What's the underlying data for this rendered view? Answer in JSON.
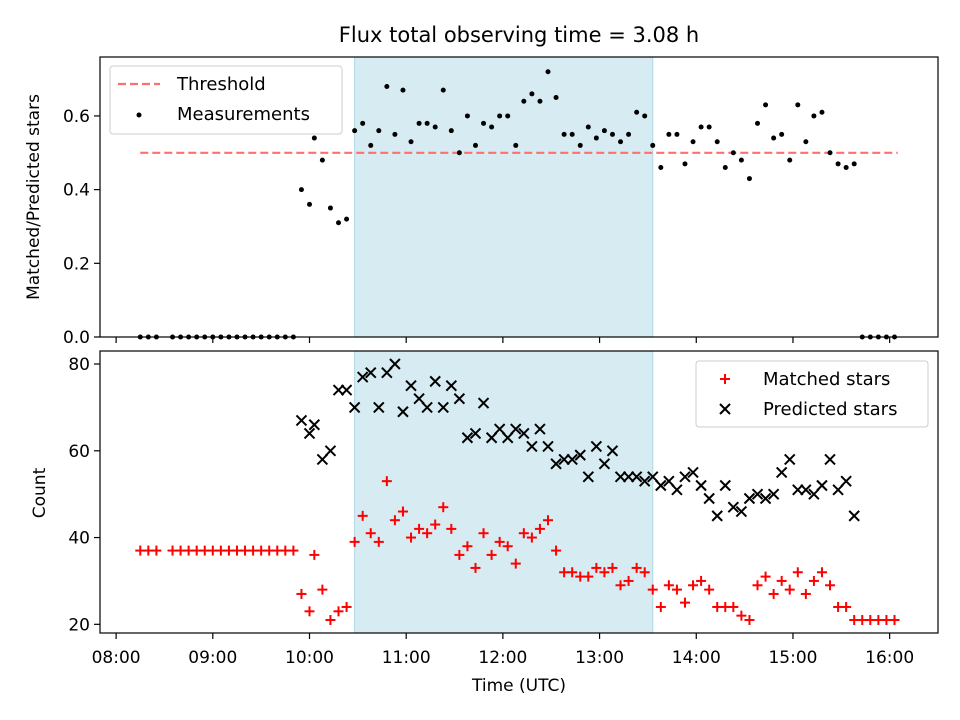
{
  "title": "Flux total observing time = 3.08 h",
  "colors": {
    "threshold": "#ff6f6f",
    "measurement": "#000000",
    "matched": "#ff0000",
    "predicted": "#000000",
    "shade": "#add8e6"
  },
  "chart_data": [
    {
      "type": "scatter",
      "ylabel": "Matched/Predicted stars",
      "xlim": [
        "07:50",
        "16:30"
      ],
      "ylim": [
        0,
        0.76
      ],
      "yticks": [
        "0.0",
        "0.2",
        "0.4",
        "0.6"
      ],
      "shaded_interval": [
        "10:28",
        "13:33"
      ],
      "legend_position": "top-left",
      "threshold": {
        "name": "Threshold",
        "value": 0.5,
        "x_range": [
          "08:15",
          "16:05"
        ]
      },
      "measurements": {
        "name": "Measurements",
        "points": [
          [
            "08:15",
            0
          ],
          [
            "08:20",
            0
          ],
          [
            "08:25",
            0
          ],
          [
            "08:35",
            0
          ],
          [
            "08:40",
            0
          ],
          [
            "08:45",
            0
          ],
          [
            "08:50",
            0
          ],
          [
            "08:55",
            0
          ],
          [
            "09:00",
            0
          ],
          [
            "09:05",
            0
          ],
          [
            "09:10",
            0
          ],
          [
            "09:15",
            0
          ],
          [
            "09:20",
            0
          ],
          [
            "09:25",
            0
          ],
          [
            "09:30",
            0
          ],
          [
            "09:35",
            0
          ],
          [
            "09:40",
            0
          ],
          [
            "09:45",
            0
          ],
          [
            "09:50",
            0
          ],
          [
            "09:55",
            0.4
          ],
          [
            "10:00",
            0.36
          ],
          [
            "10:03",
            0.54
          ],
          [
            "10:08",
            0.48
          ],
          [
            "10:13",
            0.35
          ],
          [
            "10:18",
            0.31
          ],
          [
            "10:23",
            0.32
          ],
          [
            "10:28",
            0.56
          ],
          [
            "10:33",
            0.58
          ],
          [
            "10:38",
            0.52
          ],
          [
            "10:43",
            0.56
          ],
          [
            "10:48",
            0.68
          ],
          [
            "10:53",
            0.55
          ],
          [
            "10:58",
            0.67
          ],
          [
            "11:03",
            0.53
          ],
          [
            "11:08",
            0.58
          ],
          [
            "11:13",
            0.58
          ],
          [
            "11:18",
            0.57
          ],
          [
            "11:23",
            0.67
          ],
          [
            "11:28",
            0.56
          ],
          [
            "11:33",
            0.5
          ],
          [
            "11:38",
            0.6
          ],
          [
            "11:43",
            0.52
          ],
          [
            "11:48",
            0.58
          ],
          [
            "11:53",
            0.57
          ],
          [
            "11:58",
            0.6
          ],
          [
            "12:03",
            0.6
          ],
          [
            "12:08",
            0.52
          ],
          [
            "12:13",
            0.64
          ],
          [
            "12:18",
            0.66
          ],
          [
            "12:23",
            0.64
          ],
          [
            "12:28",
            0.72
          ],
          [
            "12:33",
            0.65
          ],
          [
            "12:38",
            0.55
          ],
          [
            "12:43",
            0.55
          ],
          [
            "12:48",
            0.52
          ],
          [
            "12:53",
            0.57
          ],
          [
            "12:58",
            0.54
          ],
          [
            "13:03",
            0.56
          ],
          [
            "13:08",
            0.55
          ],
          [
            "13:13",
            0.53
          ],
          [
            "13:18",
            0.55
          ],
          [
            "13:23",
            0.61
          ],
          [
            "13:28",
            0.6
          ],
          [
            "13:33",
            0.52
          ],
          [
            "13:38",
            0.46
          ],
          [
            "13:43",
            0.55
          ],
          [
            "13:48",
            0.55
          ],
          [
            "13:53",
            0.47
          ],
          [
            "13:58",
            0.53
          ],
          [
            "14:03",
            0.57
          ],
          [
            "14:08",
            0.57
          ],
          [
            "14:13",
            0.53
          ],
          [
            "14:18",
            0.46
          ],
          [
            "14:23",
            0.5
          ],
          [
            "14:28",
            0.48
          ],
          [
            "14:33",
            0.43
          ],
          [
            "14:38",
            0.58
          ],
          [
            "14:43",
            0.63
          ],
          [
            "14:48",
            0.54
          ],
          [
            "14:53",
            0.55
          ],
          [
            "14:58",
            0.48
          ],
          [
            "15:03",
            0.63
          ],
          [
            "15:08",
            0.53
          ],
          [
            "15:13",
            0.6
          ],
          [
            "15:18",
            0.61
          ],
          [
            "15:23",
            0.5
          ],
          [
            "15:28",
            0.47
          ],
          [
            "15:33",
            0.46
          ],
          [
            "15:38",
            0.47
          ],
          [
            "15:43",
            0
          ],
          [
            "15:48",
            0
          ],
          [
            "15:53",
            0
          ],
          [
            "15:58",
            0
          ],
          [
            "16:03",
            0
          ]
        ]
      }
    },
    {
      "type": "scatter",
      "xlabel": "Time (UTC)",
      "ylabel": "Count",
      "xlim": [
        "07:50",
        "16:30"
      ],
      "ylim": [
        18,
        83
      ],
      "yticks": [
        "20",
        "40",
        "60",
        "80"
      ],
      "xticks": [
        "08:00",
        "09:00",
        "10:00",
        "11:00",
        "12:00",
        "13:00",
        "14:00",
        "15:00",
        "16:00"
      ],
      "shaded_interval": [
        "10:28",
        "13:33"
      ],
      "legend_position": "top-right",
      "series": [
        {
          "name": "Matched stars",
          "marker": "plus",
          "points": [
            [
              "08:15",
              37
            ],
            [
              "08:20",
              37
            ],
            [
              "08:25",
              37
            ],
            [
              "08:35",
              37
            ],
            [
              "08:40",
              37
            ],
            [
              "08:45",
              37
            ],
            [
              "08:50",
              37
            ],
            [
              "08:55",
              37
            ],
            [
              "09:00",
              37
            ],
            [
              "09:05",
              37
            ],
            [
              "09:10",
              37
            ],
            [
              "09:15",
              37
            ],
            [
              "09:20",
              37
            ],
            [
              "09:25",
              37
            ],
            [
              "09:30",
              37
            ],
            [
              "09:35",
              37
            ],
            [
              "09:40",
              37
            ],
            [
              "09:45",
              37
            ],
            [
              "09:50",
              37
            ],
            [
              "09:55",
              27
            ],
            [
              "10:00",
              23
            ],
            [
              "10:03",
              36
            ],
            [
              "10:08",
              28
            ],
            [
              "10:13",
              21
            ],
            [
              "10:18",
              23
            ],
            [
              "10:23",
              24
            ],
            [
              "10:28",
              39
            ],
            [
              "10:33",
              45
            ],
            [
              "10:38",
              41
            ],
            [
              "10:43",
              39
            ],
            [
              "10:48",
              53
            ],
            [
              "10:53",
              44
            ],
            [
              "10:58",
              46
            ],
            [
              "11:03",
              40
            ],
            [
              "11:08",
              42
            ],
            [
              "11:13",
              41
            ],
            [
              "11:18",
              43
            ],
            [
              "11:23",
              47
            ],
            [
              "11:28",
              42
            ],
            [
              "11:33",
              36
            ],
            [
              "11:38",
              38
            ],
            [
              "11:43",
              33
            ],
            [
              "11:48",
              41
            ],
            [
              "11:53",
              36
            ],
            [
              "11:58",
              39
            ],
            [
              "12:03",
              38
            ],
            [
              "12:08",
              34
            ],
            [
              "12:13",
              41
            ],
            [
              "12:18",
              40
            ],
            [
              "12:23",
              42
            ],
            [
              "12:28",
              44
            ],
            [
              "12:33",
              37
            ],
            [
              "12:38",
              32
            ],
            [
              "12:43",
              32
            ],
            [
              "12:48",
              31
            ],
            [
              "12:53",
              31
            ],
            [
              "12:58",
              33
            ],
            [
              "13:03",
              32
            ],
            [
              "13:08",
              33
            ],
            [
              "13:13",
              29
            ],
            [
              "13:18",
              30
            ],
            [
              "13:23",
              33
            ],
            [
              "13:28",
              32
            ],
            [
              "13:33",
              28
            ],
            [
              "13:38",
              24
            ],
            [
              "13:43",
              29
            ],
            [
              "13:48",
              28
            ],
            [
              "13:53",
              25
            ],
            [
              "13:58",
              29
            ],
            [
              "14:03",
              30
            ],
            [
              "14:08",
              28
            ],
            [
              "14:13",
              24
            ],
            [
              "14:18",
              24
            ],
            [
              "14:23",
              24
            ],
            [
              "14:28",
              22
            ],
            [
              "14:33",
              21
            ],
            [
              "14:38",
              29
            ],
            [
              "14:43",
              31
            ],
            [
              "14:48",
              27
            ],
            [
              "14:53",
              30
            ],
            [
              "14:58",
              28
            ],
            [
              "15:03",
              32
            ],
            [
              "15:08",
              27
            ],
            [
              "15:13",
              30
            ],
            [
              "15:18",
              32
            ],
            [
              "15:23",
              29
            ],
            [
              "15:28",
              24
            ],
            [
              "15:33",
              24
            ],
            [
              "15:38",
              21
            ],
            [
              "15:43",
              21
            ],
            [
              "15:48",
              21
            ],
            [
              "15:53",
              21
            ],
            [
              "15:58",
              21
            ],
            [
              "16:03",
              21
            ]
          ]
        },
        {
          "name": "Predicted stars",
          "marker": "x",
          "points": [
            [
              "09:55",
              67
            ],
            [
              "10:00",
              64
            ],
            [
              "10:03",
              66
            ],
            [
              "10:08",
              58
            ],
            [
              "10:13",
              60
            ],
            [
              "10:18",
              74
            ],
            [
              "10:23",
              74
            ],
            [
              "10:28",
              70
            ],
            [
              "10:33",
              77
            ],
            [
              "10:38",
              78
            ],
            [
              "10:43",
              70
            ],
            [
              "10:48",
              78
            ],
            [
              "10:53",
              80
            ],
            [
              "10:58",
              69
            ],
            [
              "11:03",
              75
            ],
            [
              "11:08",
              72
            ],
            [
              "11:13",
              70
            ],
            [
              "11:18",
              76
            ],
            [
              "11:23",
              70
            ],
            [
              "11:28",
              75
            ],
            [
              "11:33",
              72
            ],
            [
              "11:38",
              63
            ],
            [
              "11:43",
              64
            ],
            [
              "11:48",
              71
            ],
            [
              "11:53",
              63
            ],
            [
              "11:58",
              65
            ],
            [
              "12:03",
              63
            ],
            [
              "12:08",
              65
            ],
            [
              "12:13",
              64
            ],
            [
              "12:18",
              61
            ],
            [
              "12:23",
              65
            ],
            [
              "12:28",
              61
            ],
            [
              "12:33",
              57
            ],
            [
              "12:38",
              58
            ],
            [
              "12:43",
              58
            ],
            [
              "12:48",
              59
            ],
            [
              "12:53",
              54
            ],
            [
              "12:58",
              61
            ],
            [
              "13:03",
              57
            ],
            [
              "13:08",
              60
            ],
            [
              "13:13",
              54
            ],
            [
              "13:18",
              54
            ],
            [
              "13:23",
              54
            ],
            [
              "13:28",
              53
            ],
            [
              "13:33",
              54
            ],
            [
              "13:38",
              52
            ],
            [
              "13:43",
              53
            ],
            [
              "13:48",
              51
            ],
            [
              "13:53",
              54
            ],
            [
              "13:58",
              55
            ],
            [
              "14:03",
              52
            ],
            [
              "14:08",
              49
            ],
            [
              "14:13",
              45
            ],
            [
              "14:18",
              52
            ],
            [
              "14:23",
              47
            ],
            [
              "14:28",
              46
            ],
            [
              "14:33",
              49
            ],
            [
              "14:38",
              50
            ],
            [
              "14:43",
              49
            ],
            [
              "14:48",
              50
            ],
            [
              "14:53",
              55
            ],
            [
              "14:58",
              58
            ],
            [
              "15:03",
              51
            ],
            [
              "15:08",
              51
            ],
            [
              "15:13",
              50
            ],
            [
              "15:18",
              52
            ],
            [
              "15:23",
              58
            ],
            [
              "15:28",
              51
            ],
            [
              "15:33",
              53
            ],
            [
              "15:38",
              45
            ]
          ]
        }
      ]
    }
  ]
}
